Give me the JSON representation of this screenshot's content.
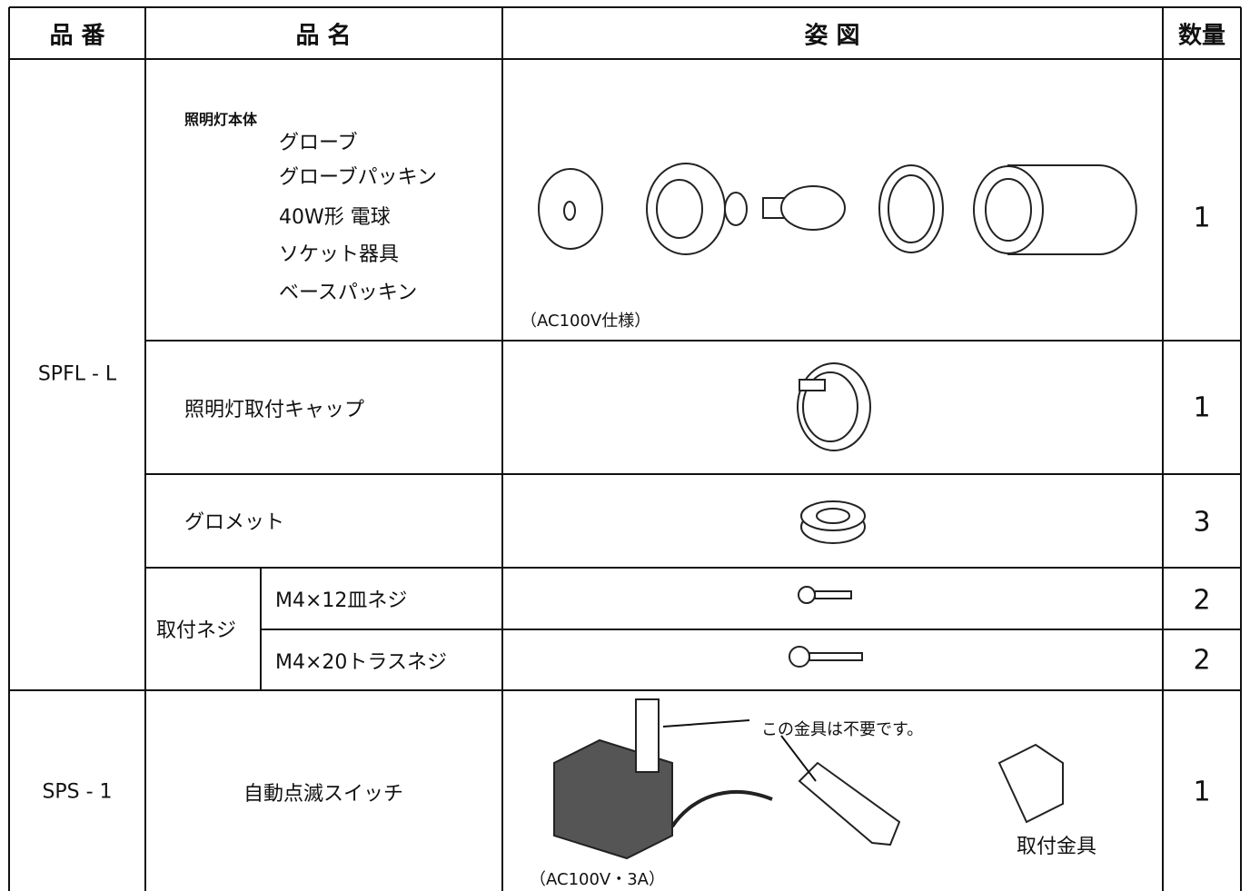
{
  "table": {
    "header": [
      "品 番",
      "品 名",
      "姿 図",
      "数量"
    ],
    "groups": [
      {
        "code": "SPFL - L",
        "items": [
          {
            "name": "照明灯本体",
            "parts": [
              "グローブ",
              "グローブパッキン",
              "40W形 電球",
              "ソケット器具",
              "ベースパッキン"
            ],
            "note": "（AC100V仕様）",
            "qty": "1"
          },
          {
            "name": "照明灯取付キャップ",
            "qty": "1"
          },
          {
            "name": "グロメット",
            "qty": "3"
          },
          {
            "name": "取付ネジ",
            "subitems": [
              {
                "name": "M4×12皿ネジ",
                "qty": "2"
              },
              {
                "name": "M4×20トラスネジ",
                "qty": "2"
              }
            ]
          }
        ]
      },
      {
        "code": "SPS - 1",
        "items": [
          {
            "name": "自動点滅スイッチ",
            "note": "（AC100V・3A）",
            "callout": "この金具は不要です。",
            "label": "取付金具",
            "qty": "1"
          }
        ]
      }
    ]
  }
}
